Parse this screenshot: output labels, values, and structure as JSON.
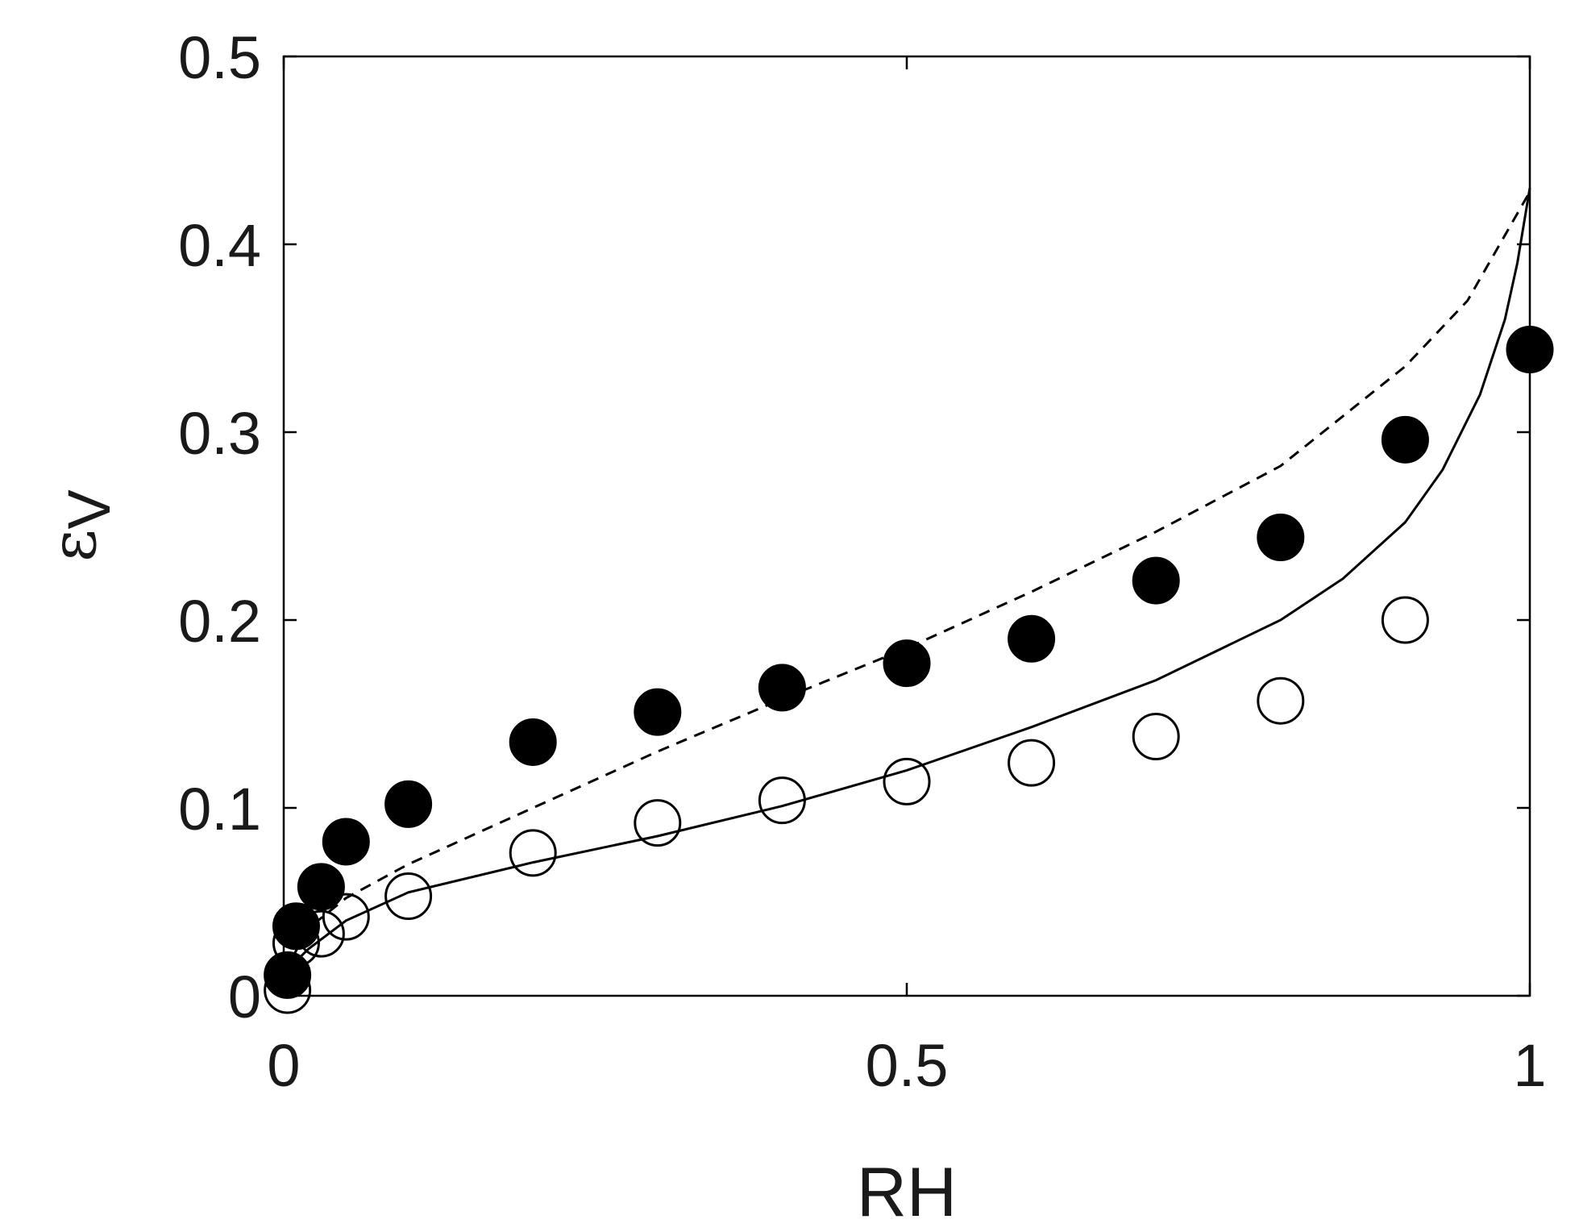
{
  "chart_data": {
    "type": "scatter",
    "xlabel": "RH",
    "ylabel": {
      "symbol": "ε",
      "subscript": "V"
    },
    "xlim": [
      0,
      1
    ],
    "ylim": [
      0,
      0.5
    ],
    "xticks": [
      {
        "value": 0,
        "label": "0"
      },
      {
        "value": 0.5,
        "label": "0.5"
      },
      {
        "value": 1,
        "label": "1"
      }
    ],
    "yticks": [
      {
        "value": 0,
        "label": "0"
      },
      {
        "value": 0.1,
        "label": "0.1"
      },
      {
        "value": 0.2,
        "label": "0.2"
      },
      {
        "value": 0.3,
        "label": "0.3"
      },
      {
        "value": 0.4,
        "label": "0.4"
      },
      {
        "value": 0.5,
        "label": "0.5"
      }
    ],
    "grid": false,
    "box": true,
    "series": [
      {
        "marker": "filled-circle",
        "color": "#000000",
        "points": [
          [
            0.003,
            0.011
          ],
          [
            0.01,
            0.037
          ],
          [
            0.03,
            0.058
          ],
          [
            0.05,
            0.082
          ],
          [
            0.1,
            0.102
          ],
          [
            0.2,
            0.135
          ],
          [
            0.3,
            0.151
          ],
          [
            0.4,
            0.164
          ],
          [
            0.5,
            0.177
          ],
          [
            0.6,
            0.19
          ],
          [
            0.7,
            0.221
          ],
          [
            0.8,
            0.244
          ],
          [
            0.9,
            0.296
          ],
          [
            1.0,
            0.344
          ]
        ]
      },
      {
        "marker": "open-circle",
        "color": "#000000",
        "points": [
          [
            0.003,
            0.003
          ],
          [
            0.01,
            0.028
          ],
          [
            0.03,
            0.033
          ],
          [
            0.05,
            0.042
          ],
          [
            0.1,
            0.053
          ],
          [
            0.2,
            0.076
          ],
          [
            0.3,
            0.092
          ],
          [
            0.4,
            0.104
          ],
          [
            0.5,
            0.114
          ],
          [
            0.6,
            0.124
          ],
          [
            0.7,
            0.138
          ],
          [
            0.8,
            0.157
          ],
          [
            0.9,
            0.2
          ]
        ]
      },
      {
        "line": "dashed",
        "color": "#000000",
        "points": [
          [
            0.0,
            0.012
          ],
          [
            0.02,
            0.036
          ],
          [
            0.05,
            0.052
          ],
          [
            0.1,
            0.07
          ],
          [
            0.2,
            0.1
          ],
          [
            0.3,
            0.13
          ],
          [
            0.4,
            0.158
          ],
          [
            0.5,
            0.185
          ],
          [
            0.6,
            0.215
          ],
          [
            0.7,
            0.247
          ],
          [
            0.8,
            0.282
          ],
          [
            0.9,
            0.335
          ],
          [
            0.95,
            0.37
          ],
          [
            1.0,
            0.428
          ]
        ]
      },
      {
        "line": "solid",
        "color": "#000000",
        "points": [
          [
            0.0,
            0.012
          ],
          [
            0.02,
            0.025
          ],
          [
            0.05,
            0.04
          ],
          [
            0.1,
            0.055
          ],
          [
            0.2,
            0.071
          ],
          [
            0.3,
            0.085
          ],
          [
            0.4,
            0.101
          ],
          [
            0.5,
            0.12
          ],
          [
            0.6,
            0.143
          ],
          [
            0.7,
            0.168
          ],
          [
            0.8,
            0.2
          ],
          [
            0.85,
            0.222
          ],
          [
            0.9,
            0.252
          ],
          [
            0.93,
            0.28
          ],
          [
            0.96,
            0.32
          ],
          [
            0.98,
            0.36
          ],
          [
            0.99,
            0.39
          ],
          [
            1.0,
            0.43
          ]
        ]
      }
    ]
  }
}
